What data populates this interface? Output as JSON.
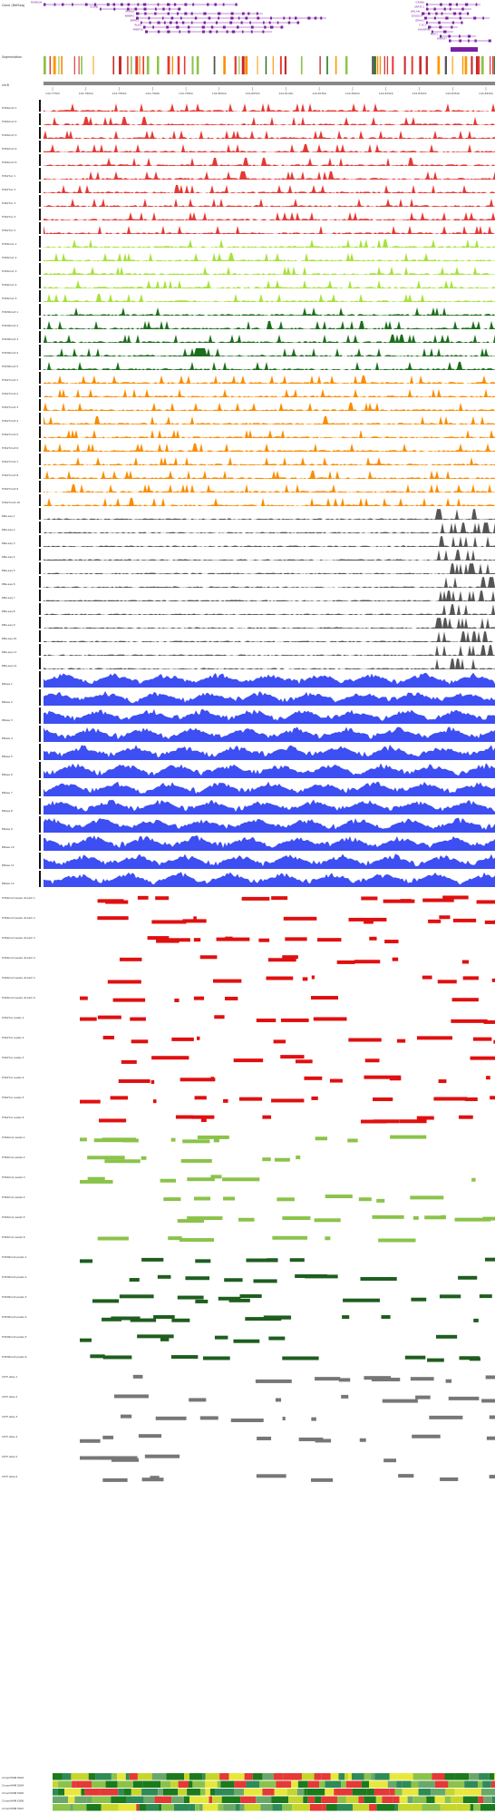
{
  "colors": {
    "gene": "#7b1fa2",
    "gene_light": "#ba68c8",
    "ruler": "#888888",
    "track_red": "#e53935",
    "track_lime": "#a7e23b",
    "track_darkgreen": "#1b6e1b",
    "track_orange": "#fb8c00",
    "track_gray": "#555555",
    "track_blue": "#3d4ef2",
    "block_red": "#e01010",
    "block_red2": "#e64a19",
    "block_lime": "#8bc34a",
    "block_darkgreen": "#1e5e1e",
    "block_gray": "#777777",
    "block_teal": "#4db6ac",
    "chromhmm": [
      "#1b7a1b",
      "#8bc34a",
      "#c6d62b",
      "#e8e83a",
      "#e53935",
      "#6aa86a",
      "#2e8b57"
    ]
  },
  "gene_tracks": {
    "label": "Gene (RefSeq)",
    "genes": [
      "FAM83H",
      "SCRIB",
      "PUF60",
      "NRBP2",
      "EPPK1",
      "PLEC",
      "PARP10",
      "GRINA",
      "SPATC1",
      "OPLAH",
      "EXOSC4",
      "GPAA1",
      "CYC1",
      "SHARPIN",
      "MAF1",
      "WDR97",
      "HGH1",
      "MROH1",
      "BOP1",
      "SCX",
      "HSF1",
      "DGAT1",
      "SCRT1",
      "TMEM249",
      "FBXL6",
      "SLC52A2"
    ]
  },
  "ruler": {
    "label": "chr8",
    "ticks": [
      "144,775kb",
      "144,780kb",
      "144,785kb",
      "144,790kb",
      "144,795kb",
      "144,800kb",
      "144,805kb",
      "144,810kb",
      "144,815kb",
      "144,820kb",
      "144,825kb",
      "144,830kb",
      "144,835kb",
      "144,840kb"
    ]
  },
  "track_groups": [
    {
      "key": "red",
      "count": 5,
      "label_prefix": "H3K4me3 "
    },
    {
      "key": "red",
      "count": 5,
      "label_prefix": "H3K27ac "
    },
    {
      "key": "lime",
      "count": 5,
      "label_prefix": "H3K4me1 "
    },
    {
      "key": "darkgreen",
      "count": 5,
      "label_prefix": "H3K36me3 "
    },
    {
      "key": "orange",
      "count": 10,
      "label_prefix": "H3K27me3 "
    },
    {
      "key": "gray",
      "count": 12,
      "label_prefix": "RNA-seq "
    },
    {
      "key": "blue",
      "count": 12,
      "label_prefix": "DNase "
    }
  ],
  "block_groups": [
    {
      "key": "red",
      "label": "H3K4me3 peaks (broad)"
    },
    {
      "key": "red",
      "label": "H3K27ac peaks"
    },
    {
      "key": "lime",
      "label": "H3K4me1 peaks"
    },
    {
      "key": "darkgreen",
      "label": "H3K36me3 peaks"
    },
    {
      "key": "gray",
      "label": "CTCF sites"
    }
  ],
  "segmentation": {
    "rows": 5,
    "labels": [
      "ChromHMM E003",
      "ChromHMM E004",
      "ChromHMM E005",
      "ChromHMM E006",
      "ChromHMM E007"
    ]
  }
}
